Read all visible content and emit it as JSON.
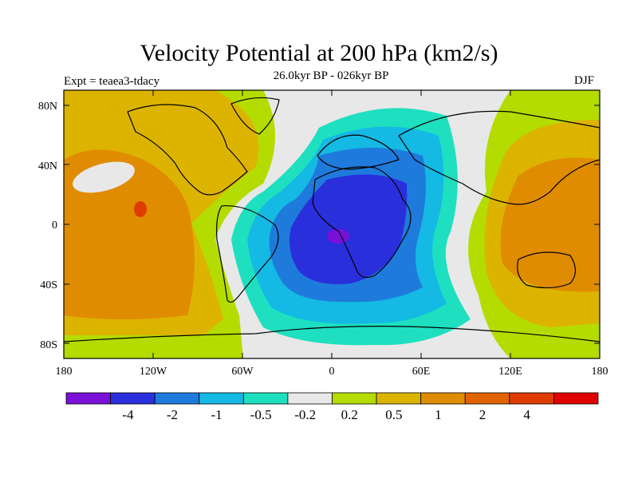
{
  "header": {
    "title": "Velocity Potential at 200 hPa (km2/s)",
    "subtitle": "26.0kyr BP - 026kyr BP",
    "experiment": "Expt = teaea3-tdacy",
    "season": "DJF"
  },
  "map": {
    "lon_ticks": [
      "180",
      "120W",
      "60W",
      "0",
      "60E",
      "120E",
      "180"
    ],
    "lat_ticks": [
      "80N",
      "40N",
      "0",
      "40S",
      "80S"
    ]
  },
  "colorbar": {
    "colors": [
      "#7a10d8",
      "#2a2fdc",
      "#1e7bdc",
      "#14b9e4",
      "#1ee0c0",
      "#e8e8e8",
      "#b4dc00",
      "#dcb400",
      "#e08c00",
      "#e06400",
      "#e03c00",
      "#e00000"
    ],
    "labels": [
      "-4",
      "-2",
      "-1",
      "-0.5",
      "-0.2",
      "0.2",
      "0.5",
      "1",
      "2",
      "4"
    ]
  }
}
